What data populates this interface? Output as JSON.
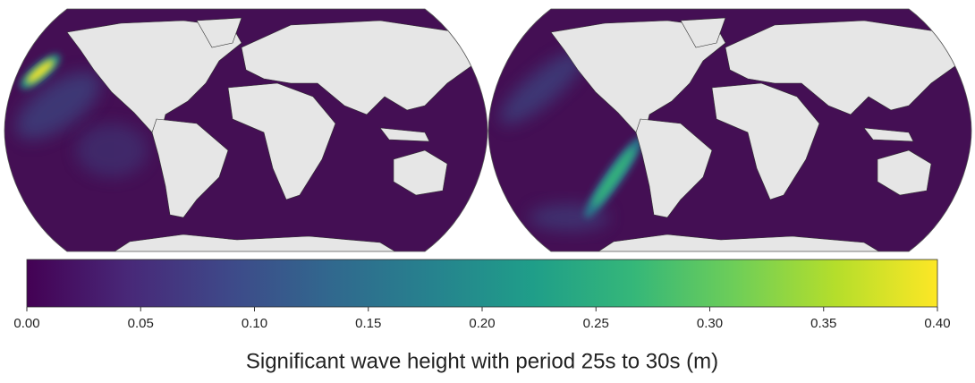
{
  "colorbar": {
    "colormap": "viridis",
    "lim": [
      0,
      0.4
    ],
    "ticks": [
      {
        "value": 0,
        "label": "0.00"
      },
      {
        "value": 0.05,
        "label": "0.05"
      },
      {
        "value": 0.1,
        "label": "0.10"
      },
      {
        "value": 0.15,
        "label": "0.15"
      },
      {
        "value": 0.2,
        "label": "0.20"
      },
      {
        "value": 0.25,
        "label": "0.25"
      },
      {
        "value": 0.3,
        "label": "0.30"
      },
      {
        "value": 0.35,
        "label": "0.35"
      },
      {
        "value": 0.4,
        "label": "0.40"
      }
    ],
    "label": "Significant wave height with period 25s to 30s (m)"
  }
}
